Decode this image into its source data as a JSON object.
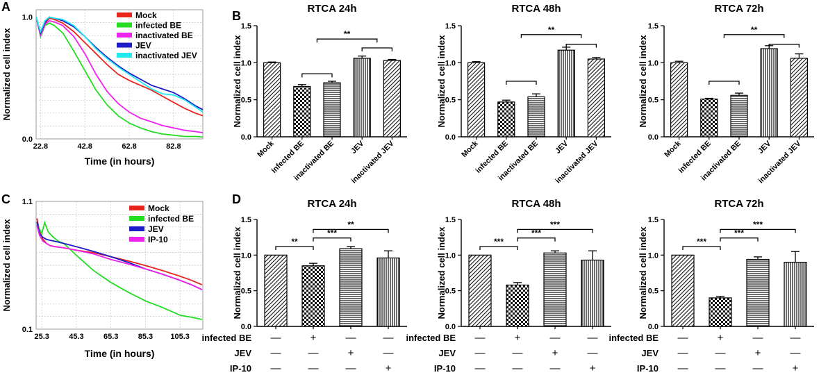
{
  "panels": {
    "A": "A",
    "B": "B",
    "C": "C",
    "D": "D"
  },
  "chart_data": [
    {
      "id": "A",
      "type": "line",
      "title": "",
      "xlabel": "Time (in hours)",
      "ylabel": "Normalized cell index",
      "xlim": [
        20.8,
        96.0
      ],
      "ylim": [
        0.0,
        1.06
      ],
      "yscale": "linear",
      "xticks": [
        22.8,
        42.8,
        62.8,
        82.8
      ],
      "xtick_labels": [
        "22.8",
        "42.8",
        "62.8",
        "82.8"
      ],
      "yticks": [
        0.0,
        1.0
      ],
      "ytick_labels": [
        "0.0",
        "1.0"
      ],
      "grid": true,
      "legend": "top-right",
      "series": [
        {
          "name": "Mock",
          "color": "#e8241c",
          "x": [
            20.8,
            22.8,
            24.8,
            26.8,
            29.0,
            32.8,
            37.8,
            42.8,
            47.8,
            52.8,
            57.8,
            62.8,
            67.8,
            72.8,
            77.8,
            82.8,
            87.8,
            92.8,
            96.0
          ],
          "y": [
            1.0,
            0.86,
            0.95,
            0.99,
            0.98,
            0.95,
            0.88,
            0.79,
            0.7,
            0.61,
            0.53,
            0.48,
            0.44,
            0.4,
            0.35,
            0.3,
            0.25,
            0.21,
            0.19
          ]
        },
        {
          "name": "infected BE",
          "color": "#22dd22",
          "x": [
            20.8,
            22.8,
            24.8,
            26.8,
            29.0,
            32.8,
            37.8,
            42.8,
            47.8,
            52.8,
            57.8,
            62.8,
            67.8,
            72.8,
            77.8,
            82.8,
            87.8,
            92.8,
            96.0
          ],
          "y": [
            1.0,
            0.84,
            0.93,
            0.95,
            0.93,
            0.87,
            0.72,
            0.56,
            0.4,
            0.28,
            0.19,
            0.13,
            0.09,
            0.06,
            0.04,
            0.03,
            0.02,
            0.02,
            0.015
          ]
        },
        {
          "name": "inactivated BE",
          "color": "#ee22ee",
          "x": [
            20.8,
            22.8,
            24.8,
            26.8,
            29.0,
            32.8,
            37.8,
            42.8,
            47.8,
            52.8,
            57.8,
            62.8,
            67.8,
            72.8,
            77.8,
            82.8,
            87.8,
            92.8,
            96.0
          ],
          "y": [
            1.0,
            0.85,
            0.94,
            0.97,
            0.96,
            0.93,
            0.84,
            0.7,
            0.53,
            0.39,
            0.29,
            0.22,
            0.17,
            0.14,
            0.11,
            0.09,
            0.07,
            0.06,
            0.05
          ]
        },
        {
          "name": "JEV",
          "color": "#1c1cc8",
          "x": [
            20.8,
            22.8,
            24.8,
            26.8,
            29.0,
            32.8,
            37.8,
            42.8,
            47.8,
            52.8,
            57.8,
            62.8,
            67.8,
            72.8,
            77.8,
            82.8,
            87.8,
            92.8,
            96.0
          ],
          "y": [
            1.0,
            0.87,
            0.96,
            1.0,
            0.99,
            0.97,
            0.92,
            0.84,
            0.75,
            0.67,
            0.6,
            0.54,
            0.49,
            0.44,
            0.41,
            0.38,
            0.33,
            0.27,
            0.24
          ]
        },
        {
          "name": "inactivated JEV",
          "color": "#22e8f0",
          "x": [
            20.8,
            22.8,
            24.8,
            26.8,
            29.0,
            32.8,
            37.8,
            42.8,
            47.8,
            52.8,
            57.8,
            62.8,
            67.8,
            72.8,
            77.8,
            82.8,
            87.8,
            92.8,
            96.0
          ],
          "y": [
            1.0,
            0.88,
            0.97,
            1.0,
            0.99,
            0.98,
            0.93,
            0.84,
            0.74,
            0.66,
            0.59,
            0.53,
            0.47,
            0.41,
            0.37,
            0.36,
            0.32,
            0.26,
            0.22
          ]
        }
      ]
    },
    {
      "id": "B1",
      "type": "bar",
      "title": "RTCA 24h",
      "ylabel": "Normalized cell index",
      "ylim": [
        0,
        1.5
      ],
      "yticks": [
        0,
        0.5,
        1.0,
        1.5
      ],
      "ytick_labels": [
        "0.0",
        "0.5",
        "1.0",
        "1.5"
      ],
      "categories": [
        "Mock",
        "infected BE",
        "inactivated BE",
        "JEV",
        "inactivated JEV"
      ],
      "values": [
        1.0,
        0.68,
        0.73,
        1.06,
        1.03
      ],
      "errors": [
        0.01,
        0.025,
        0.02,
        0.03,
        0.015
      ],
      "patterns": [
        "diag-dense",
        "checker",
        "horizontal",
        "vertical",
        "diag-dense"
      ],
      "brackets": [
        {
          "from": 1,
          "to": 2,
          "level": 0.85,
          "label": ""
        },
        {
          "from": 3,
          "to": 4,
          "level": 1.2,
          "label": ""
        },
        {
          "from": 1.5,
          "to": 3.5,
          "level": 1.32,
          "label": "**"
        }
      ]
    },
    {
      "id": "B2",
      "type": "bar",
      "title": "RTCA 48h",
      "ylabel": "Normalized cell index",
      "ylim": [
        0,
        1.5
      ],
      "yticks": [
        0,
        0.5,
        1.0,
        1.5
      ],
      "ytick_labels": [
        "0.0",
        "0.5",
        "1.0",
        "1.5"
      ],
      "categories": [
        "Mock",
        "infected BE",
        "inactivated BE",
        "JEV",
        "inactivated JEV"
      ],
      "values": [
        1.0,
        0.47,
        0.54,
        1.17,
        1.05
      ],
      "errors": [
        0.015,
        0.025,
        0.04,
        0.04,
        0.02
      ],
      "patterns": [
        "diag-dense",
        "checker",
        "horizontal",
        "vertical",
        "diag-dense"
      ],
      "brackets": [
        {
          "from": 1,
          "to": 2,
          "level": 0.75,
          "label": ""
        },
        {
          "from": 3,
          "to": 4,
          "level": 1.25,
          "label": ""
        },
        {
          "from": 1.5,
          "to": 3.5,
          "level": 1.38,
          "label": "**"
        }
      ]
    },
    {
      "id": "B3",
      "type": "bar",
      "title": "RTCA 72h",
      "ylabel": "Normalized cell index",
      "ylim": [
        0,
        1.5
      ],
      "yticks": [
        0,
        0.5,
        1.0,
        1.5
      ],
      "ytick_labels": [
        "0.0",
        "0.5",
        "1.0",
        "1.5"
      ],
      "categories": [
        "Mock",
        "infected BE",
        "inactivated BE",
        "JEV",
        "inactivated JEV"
      ],
      "values": [
        1.0,
        0.51,
        0.56,
        1.19,
        1.06
      ],
      "errors": [
        0.02,
        0.01,
        0.03,
        0.04,
        0.06
      ],
      "patterns": [
        "diag-dense",
        "checker",
        "horizontal",
        "vertical",
        "diag-dense"
      ],
      "brackets": [
        {
          "from": 1,
          "to": 2,
          "level": 0.75,
          "label": ""
        },
        {
          "from": 3,
          "to": 4,
          "level": 1.25,
          "label": ""
        },
        {
          "from": 1.5,
          "to": 3.5,
          "level": 1.38,
          "label": "**"
        }
      ]
    },
    {
      "id": "C",
      "type": "line",
      "title": "",
      "xlabel": "Time (in hours)",
      "ylabel": "Normalized cell index",
      "xlim": [
        22.0,
        118.5
      ],
      "ylim": [
        0.1,
        1.1
      ],
      "yscale": "log",
      "xticks": [
        25.3,
        45.3,
        65.3,
        85.3,
        105.3
      ],
      "xtick_labels": [
        "25.3",
        "45.3",
        "65.3",
        "85.3",
        "105.3"
      ],
      "yticks": [
        0.1,
        1.1
      ],
      "ytick_labels": [
        "0.1",
        "1.1"
      ],
      "grid": true,
      "legend": "top-right",
      "series": [
        {
          "name": "Mock",
          "color": "#e8241c",
          "x": [
            22.5,
            24,
            26,
            28,
            30,
            33,
            38,
            45.3,
            55.3,
            65.3,
            75.3,
            85.3,
            95.3,
            105.3,
            112,
            118
          ],
          "y": [
            0.8,
            0.62,
            0.54,
            0.5,
            0.48,
            0.47,
            0.46,
            0.44,
            0.42,
            0.39,
            0.36,
            0.33,
            0.3,
            0.27,
            0.25,
            0.23
          ]
        },
        {
          "name": "infected BE",
          "color": "#22dd22",
          "x": [
            22.5,
            25.3,
            27,
            29,
            32,
            35,
            38,
            45.3,
            55.3,
            65.3,
            75.3,
            85.3,
            95.3,
            105.3,
            112,
            118
          ],
          "y": [
            0.72,
            0.6,
            0.74,
            0.62,
            0.56,
            0.52,
            0.5,
            0.4,
            0.3,
            0.24,
            0.2,
            0.17,
            0.15,
            0.13,
            0.125,
            0.12
          ]
        },
        {
          "name": "JEV",
          "color": "#1c1cc8",
          "x": [
            22.5,
            24,
            26,
            28,
            30,
            33,
            38,
            45.3,
            55.3,
            65.3,
            75.3,
            85.3,
            95.3,
            105.3,
            112,
            118
          ],
          "y": [
            0.75,
            0.6,
            0.56,
            0.54,
            0.53,
            0.52,
            0.5,
            0.47,
            0.43,
            0.39,
            0.35,
            0.31,
            0.28,
            0.25,
            0.23,
            0.21
          ]
        },
        {
          "name": "IP-10",
          "color": "#ee22ee",
          "x": [
            22.5,
            24,
            26,
            28,
            30,
            33,
            38,
            45.3,
            55.3,
            65.3,
            75.3,
            85.3,
            95.3,
            105.3,
            112,
            118
          ],
          "y": [
            0.7,
            0.58,
            0.52,
            0.5,
            0.48,
            0.47,
            0.46,
            0.44,
            0.41,
            0.37,
            0.34,
            0.31,
            0.28,
            0.25,
            0.23,
            0.21
          ]
        }
      ]
    },
    {
      "id": "D1",
      "type": "bar",
      "title": "RTCA 24h",
      "ylabel": "Normalized cell index",
      "ylim": [
        0,
        1.5
      ],
      "yticks": [
        0,
        0.5,
        1.0,
        1.5
      ],
      "ytick_labels": [
        "0.0",
        "0.5",
        "1.0",
        "1.5"
      ],
      "categories": [
        "",
        "",
        "",
        ""
      ],
      "values": [
        1.0,
        0.85,
        1.09,
        0.96
      ],
      "errors": [
        0.0,
        0.035,
        0.03,
        0.1
      ],
      "patterns": [
        "diag-dense",
        "checker",
        "horizontal",
        "vertical"
      ],
      "brackets": [
        {
          "from": 0,
          "to": 1,
          "level": 1.12,
          "label": "**"
        },
        {
          "from": 1,
          "to": 2,
          "level": 1.24,
          "label": "***"
        },
        {
          "from": 1,
          "to": 3,
          "level": 1.36,
          "label": "**"
        }
      ],
      "factors": [
        {
          "label": "infected BE",
          "values": [
            "—",
            "+",
            "—",
            "—"
          ]
        },
        {
          "label": "JEV",
          "values": [
            "—",
            "—",
            "+",
            "—"
          ]
        },
        {
          "label": "IP-10",
          "values": [
            "—",
            "—",
            "—",
            "+"
          ]
        }
      ]
    },
    {
      "id": "D2",
      "type": "bar",
      "title": "RTCA 48h",
      "ylabel": "Normalized cell index",
      "ylim": [
        0,
        1.5
      ],
      "yticks": [
        0,
        0.5,
        1.0,
        1.5
      ],
      "ytick_labels": [
        "0.0",
        "0.5",
        "1.0",
        "1.5"
      ],
      "categories": [
        "",
        "",
        "",
        ""
      ],
      "values": [
        1.0,
        0.58,
        1.03,
        0.93
      ],
      "errors": [
        0.0,
        0.035,
        0.03,
        0.13
      ],
      "patterns": [
        "diag-dense",
        "checker",
        "horizontal",
        "vertical"
      ],
      "brackets": [
        {
          "from": 0,
          "to": 1,
          "level": 1.12,
          "label": "***"
        },
        {
          "from": 1,
          "to": 2,
          "level": 1.24,
          "label": "***"
        },
        {
          "from": 1,
          "to": 3,
          "level": 1.36,
          "label": "***"
        }
      ],
      "factors": [
        {
          "label": "infected BE",
          "values": [
            "—",
            "+",
            "—",
            "—"
          ]
        },
        {
          "label": "JEV",
          "values": [
            "—",
            "—",
            "+",
            "—"
          ]
        },
        {
          "label": "IP-10",
          "values": [
            "—",
            "—",
            "—",
            "+"
          ]
        }
      ]
    },
    {
      "id": "D3",
      "type": "bar",
      "title": "RTCA 72h",
      "ylabel": "Normalized cell index",
      "ylim": [
        0,
        1.5
      ],
      "yticks": [
        0,
        0.5,
        1.0,
        1.5
      ],
      "ytick_labels": [
        "0.0",
        "0.5",
        "1.0",
        "1.5"
      ],
      "categories": [
        "",
        "",
        "",
        ""
      ],
      "values": [
        1.0,
        0.4,
        0.94,
        0.9
      ],
      "errors": [
        0.0,
        0.02,
        0.035,
        0.15
      ],
      "patterns": [
        "diag-dense",
        "checker",
        "horizontal",
        "vertical"
      ],
      "brackets": [
        {
          "from": 0,
          "to": 1,
          "level": 1.12,
          "label": "***"
        },
        {
          "from": 1,
          "to": 2,
          "level": 1.24,
          "label": "***"
        },
        {
          "from": 1,
          "to": 3,
          "level": 1.36,
          "label": "***"
        }
      ],
      "factors": [
        {
          "label": "infected BE",
          "values": [
            "—",
            "+",
            "—",
            "—"
          ]
        },
        {
          "label": "JEV",
          "values": [
            "—",
            "—",
            "+",
            "—"
          ]
        },
        {
          "label": "IP-10",
          "values": [
            "—",
            "—",
            "—",
            "+"
          ]
        }
      ]
    }
  ]
}
